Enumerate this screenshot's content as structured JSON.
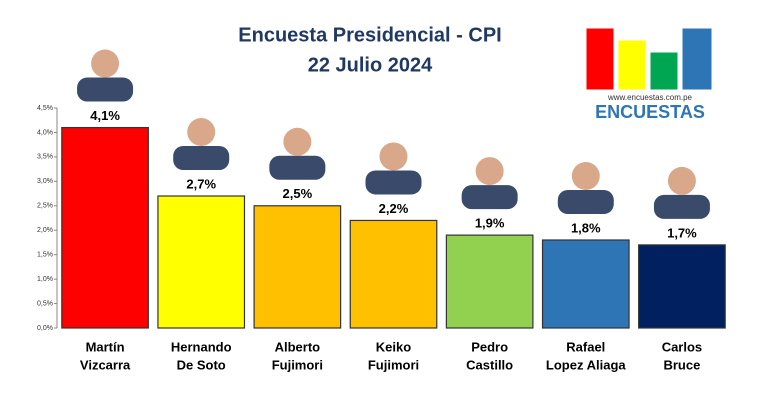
{
  "chart_data": {
    "type": "bar",
    "title": "Encuesta Presidencial - CPI",
    "subtitle": "22 Julio 2024",
    "categories": [
      [
        "Martín",
        "Vizcarra"
      ],
      [
        "Hernando",
        "De Soto"
      ],
      [
        "Alberto",
        "Fujimori"
      ],
      [
        "Keiko",
        "Fujimori"
      ],
      [
        "Pedro",
        "Castillo"
      ],
      [
        "Rafael",
        "Lopez Aliaga"
      ],
      [
        "Carlos",
        "Bruce"
      ]
    ],
    "values": [
      4.1,
      2.7,
      2.5,
      2.2,
      1.9,
      1.8,
      1.7
    ],
    "value_labels": [
      "4,1%",
      "2,7%",
      "2,5%",
      "2,2%",
      "1,9%",
      "1,8%",
      "1,7%"
    ],
    "colors": [
      "#ff0000",
      "#ffff00",
      "#ffc000",
      "#ffc000",
      "#92d050",
      "#2e75b6",
      "#002060"
    ],
    "ylim": [
      0,
      4.5
    ],
    "yticks": [
      {
        "value": 0,
        "label": "0,0%"
      },
      {
        "value": 0.5,
        "label": "0,5%"
      },
      {
        "value": 1,
        "label": "1,0%"
      },
      {
        "value": 1.5,
        "label": "1,5%"
      },
      {
        "value": 2,
        "label": "2,0%"
      },
      {
        "value": 2.5,
        "label": "2,5%"
      },
      {
        "value": 3,
        "label": "3,0%"
      },
      {
        "value": 3.5,
        "label": "3,5%"
      },
      {
        "value": 4,
        "label": "4,0%"
      },
      {
        "value": 4.5,
        "label": "4,5%"
      }
    ],
    "grid": false
  },
  "logo": {
    "url": "www.encuestas.com.pe",
    "name": "ENCUESTAS"
  }
}
